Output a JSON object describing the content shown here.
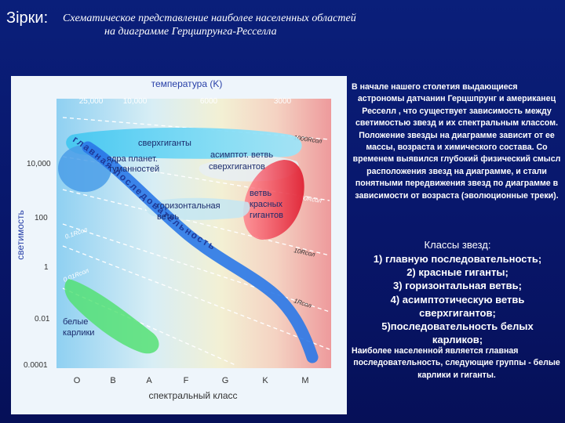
{
  "header": {
    "label": "Зірки:",
    "line1": "Схематическое представление наиболее населенных областей",
    "line2": "на диаграмме Герцшпрунга-Ресселла"
  },
  "diagram": {
    "top_axis_title": "температура (K)",
    "top_ticks": [
      "25,000",
      "10,000",
      "6000",
      "3000"
    ],
    "left_axis_title": "светимость",
    "left_ticks": [
      "10,000",
      "100",
      "1",
      "0.01",
      "0.0001"
    ],
    "bottom_axis_title": "спектральный класс",
    "bottom_ticks": [
      "O",
      "B",
      "A",
      "F",
      "G",
      "K",
      "M"
    ],
    "regions": {
      "supergiants": "сверхгиганты",
      "planetary_nuclei_1": "ядра планет.",
      "planetary_nuclei_2": "туманностей",
      "agb_1": "асимптот. ветвь",
      "agb_2": "сверхгигантов",
      "horizontal_1": "горизонтальная",
      "horizontal_2": "ветвь",
      "red_giants_1": "ветвь",
      "red_giants_2": "красных",
      "red_giants_3": "гигантов",
      "white_dwarfs_1": "белые",
      "white_dwarfs_2": "карлики"
    },
    "main_sequence_label": "главная последовательность",
    "radius_labels": [
      "1000Rсол",
      "100Rсол",
      "10Rсол",
      "1Rсол",
      "0.1Rсол",
      "0.01Rсол"
    ],
    "colors": {
      "main_sequence": "#2a78e8",
      "supergiants": "#5fd8f5",
      "red_giants": "#e8404a",
      "white_dwarfs": "#50e070"
    }
  },
  "text": {
    "intro_first": "В начале нашего столетия выдающиеся",
    "intro_rest": "астрономы датчанин Герцшпрунг и американец Ресселл , что существует зависимость между светимостью звезд и их спектральным классом. Положение звезды на диаграмме зависит от ее массы, возраста и химического состава. Со временем выявился глубокий физический смысл расположения звезд на диаграмме, и стали понятными передвижения звезд по диаграмме в зависимости от возраста (эволюционные треки).",
    "classes_title": "Классы звезд:",
    "classes": [
      "1) главную последовательность;",
      "2) красные гиганты;",
      "3) горизонтальная ветвь;",
      "4) асимптотическую ветвь",
      "сверхгигантов;",
      "5)последовательность белых",
      "карликов;"
    ],
    "summary_first": "Наиболее населенной является главная",
    "summary_rest": "последовательность, следующие группы - белые карлики и гиганты."
  }
}
